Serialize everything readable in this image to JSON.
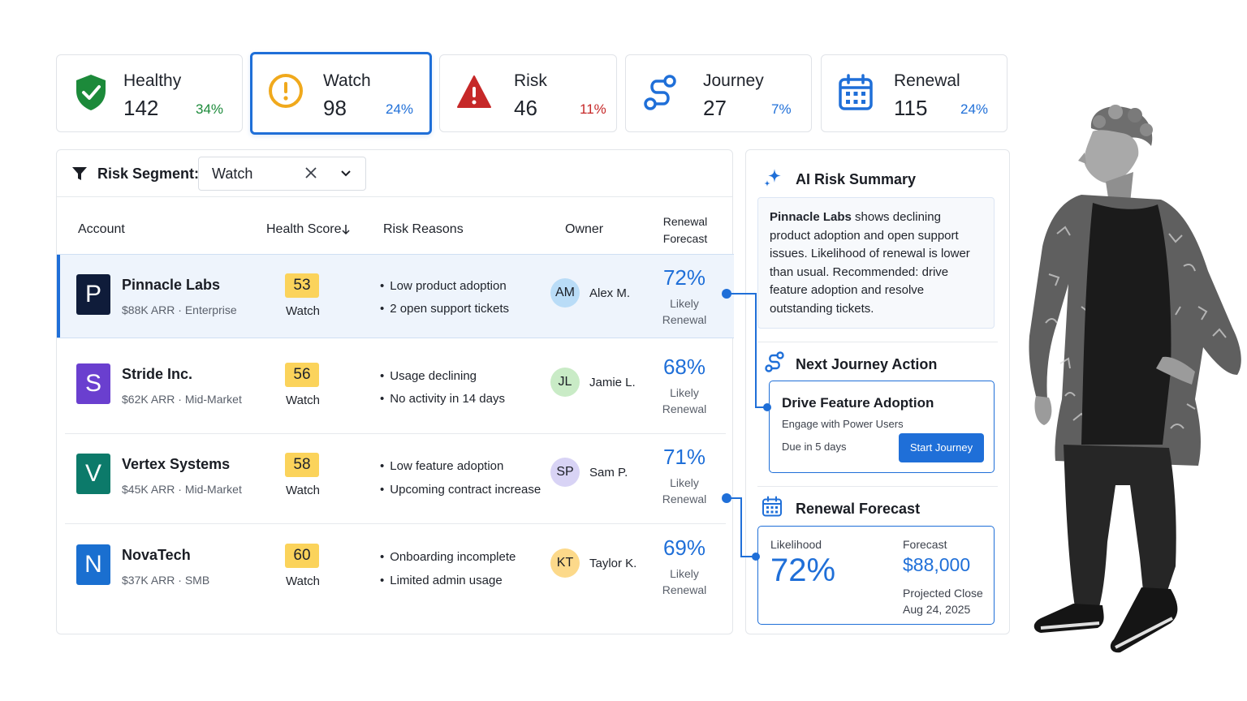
{
  "stats": [
    {
      "label": "Healthy",
      "value": "142",
      "pct": "34%",
      "icon": "shield-check-icon",
      "pct_color": "#1c8a3a"
    },
    {
      "label": "Watch",
      "value": "98",
      "pct": "24%",
      "icon": "warning-circle-icon",
      "pct_color": "#1f6fd8"
    },
    {
      "label": "Risk",
      "value": "46",
      "pct": "11%",
      "icon": "alert-triangle-icon",
      "pct_color": "#c62828"
    },
    {
      "label": "Journey",
      "value": "27",
      "pct": "7%",
      "icon": "journey-path-icon",
      "pct_color": "#1f6fd8"
    },
    {
      "label": "Renewal",
      "value": "115",
      "pct": "24%",
      "icon": "calendar-icon",
      "pct_color": "#1f6fd8"
    }
  ],
  "filter": {
    "label": "Risk Segment:",
    "value": "Watch"
  },
  "columns": {
    "account": "Account",
    "health": "Health Score",
    "reasons": "Risk Reasons",
    "owner": "Owner",
    "renewal_line1": "Renewal",
    "renewal_line2": "Forecast"
  },
  "rows": [
    {
      "logo": "P",
      "logo_color": "#0f1c3a",
      "name": "Pinnacle Labs",
      "arr": "$88K ARR",
      "segment": "Enterprise",
      "score": "53",
      "score_label": "Watch",
      "reasons": [
        "Low product adoption",
        "2 open support tickets"
      ],
      "initials": "AM",
      "avatar_color": "#b9dcf7",
      "owner": "Alex M.",
      "forecast": "72%",
      "forecast_l1": "Likely",
      "forecast_l2": "Renewal"
    },
    {
      "logo": "S",
      "logo_color": "#6a3fcf",
      "name": "Stride Inc.",
      "arr": "$62K ARR",
      "segment": "Mid-Market",
      "score": "56",
      "score_label": "Watch",
      "reasons": [
        "Usage declining",
        "No activity in 14 days"
      ],
      "initials": "JL",
      "avatar_color": "#c9ebc6",
      "owner": "Jamie L.",
      "forecast": "68%",
      "forecast_l1": "Likely",
      "forecast_l2": "Renewal"
    },
    {
      "logo": "V",
      "logo_color": "#0c7a6a",
      "name": "Vertex Systems",
      "arr": "$45K ARR",
      "segment": "Mid-Market",
      "score": "58",
      "score_label": "Watch",
      "reasons": [
        "Low feature adoption",
        "Upcoming contract increase"
      ],
      "initials": "SP",
      "avatar_color": "#d8d3f5",
      "owner": "Sam P.",
      "forecast": "71%",
      "forecast_l1": "Likely",
      "forecast_l2": "Renewal"
    },
    {
      "logo": "N",
      "logo_color": "#1a6fd0",
      "name": "NovaTech",
      "arr": "$37K ARR",
      "segment": "SMB",
      "score": "60",
      "score_label": "Watch",
      "reasons": [
        "Onboarding incomplete",
        "Limited admin usage"
      ],
      "initials": "KT",
      "avatar_color": "#fcd98a",
      "owner": "Taylor K.",
      "forecast": "69%",
      "forecast_l1": "Likely",
      "forecast_l2": "Renewal"
    }
  ],
  "ai_summary": {
    "title": "AI Risk Summary",
    "account": "Pinnacle Labs",
    "text": " shows declining product adoption and open support issues. Likelihood of renewal is lower than usual. Recommended: drive feature adoption and resolve outstanding tickets."
  },
  "journey": {
    "title": "Next Journey Action",
    "action": "Drive Feature Adoption",
    "subtitle": "Engage with Power Users",
    "due": "Due in 5 days",
    "button": "Start Journey"
  },
  "forecast": {
    "title": "Renewal Forecast",
    "likelihood_label": "Likelihood",
    "likelihood": "72%",
    "forecast_label": "Forecast",
    "amount": "$88,000",
    "close_label": "Projected Close",
    "close_date": "Aug 24, 2025"
  },
  "colors": {
    "accent": "#1f6fd8",
    "score_badge": "#fbd35b",
    "healthy": "#1c8a3a",
    "risk": "#c62828"
  }
}
